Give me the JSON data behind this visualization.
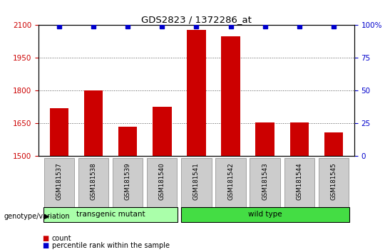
{
  "title": "GDS2823 / 1372286_at",
  "samples": [
    "GSM181537",
    "GSM181538",
    "GSM181539",
    "GSM181540",
    "GSM181541",
    "GSM181542",
    "GSM181543",
    "GSM181544",
    "GSM181545"
  ],
  "counts": [
    1720,
    1800,
    1635,
    1725,
    2080,
    2050,
    1655,
    1655,
    1610
  ],
  "percentile_ranks": [
    99,
    99,
    99,
    99,
    99,
    99,
    99,
    99,
    99
  ],
  "ylim_left": [
    1500,
    2100
  ],
  "yticks_left": [
    1500,
    1650,
    1800,
    1950,
    2100
  ],
  "ylim_right": [
    0,
    100
  ],
  "yticks_right": [
    0,
    25,
    50,
    75,
    100
  ],
  "bar_color": "#cc0000",
  "dot_color": "#0000cc",
  "grid_color": "#555555",
  "transgenic_group": [
    0,
    1,
    2,
    3
  ],
  "wildtype_group": [
    4,
    5,
    6,
    7,
    8
  ],
  "transgenic_label": "transgenic mutant",
  "wildtype_label": "wild type",
  "transgenic_color": "#aaffaa",
  "wildtype_color": "#44dd44",
  "group_label": "genotype/variation",
  "left_tick_color": "#cc0000",
  "right_tick_color": "#0000cc",
  "legend_count_label": "count",
  "legend_percentile_label": "percentile rank within the sample",
  "bar_width": 0.55,
  "label_box_color": "#cccccc",
  "label_box_edge": "#888888"
}
